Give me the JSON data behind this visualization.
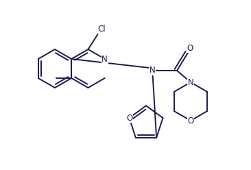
{
  "background": "#ffffff",
  "line_color": "#1a1a50",
  "line_width": 1.4,
  "font_size": 8.5,
  "figsize": [
    3.66,
    2.48
  ],
  "dpi": 100,
  "xlim": [
    0,
    366
  ],
  "ylim": [
    0,
    248
  ]
}
